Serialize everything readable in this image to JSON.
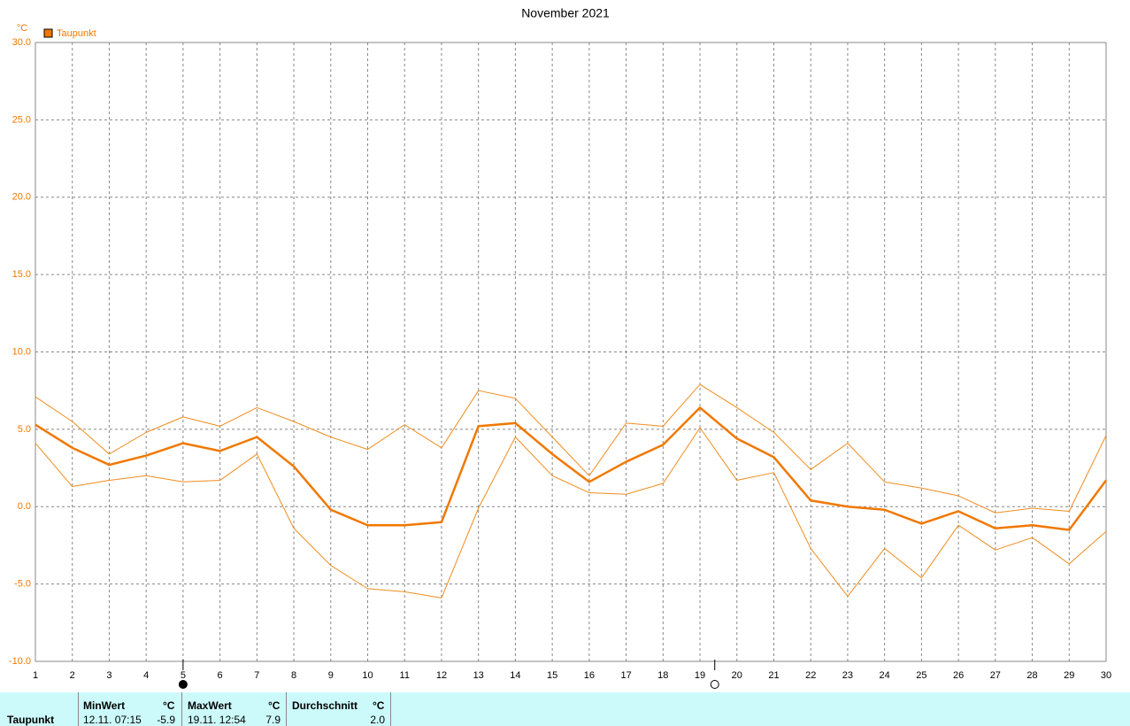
{
  "chart_data": {
    "type": "line",
    "title": "November 2021",
    "y_unit": "°C",
    "legend": "top-left",
    "x": [
      1,
      2,
      3,
      4,
      5,
      6,
      7,
      8,
      9,
      10,
      11,
      12,
      13,
      14,
      15,
      16,
      17,
      18,
      19,
      20,
      21,
      22,
      23,
      24,
      25,
      26,
      27,
      28,
      29,
      30
    ],
    "xlim": [
      1,
      30
    ],
    "xticks": [
      1,
      2,
      3,
      4,
      5,
      6,
      7,
      8,
      9,
      10,
      11,
      12,
      13,
      14,
      15,
      16,
      17,
      18,
      19,
      20,
      21,
      22,
      23,
      24,
      25,
      26,
      27,
      28,
      29,
      30
    ],
    "ylim": [
      -10,
      30
    ],
    "yticks": [
      {
        "value": -10,
        "label": "-10.0"
      },
      {
        "value": -5,
        "label": "-5.0"
      },
      {
        "value": 0,
        "label": "0.0"
      },
      {
        "value": 5,
        "label": "5.0"
      },
      {
        "value": 10,
        "label": "10.0"
      },
      {
        "value": 15,
        "label": "15.0"
      },
      {
        "value": 20,
        "label": "20.0"
      },
      {
        "value": 25,
        "label": "25.0"
      },
      {
        "value": 30,
        "label": "30.0"
      }
    ],
    "grid": true,
    "series": [
      {
        "name": "Taupunkt",
        "color": "#f07800",
        "width": 2.5,
        "values": [
          5.3,
          3.8,
          2.7,
          3.3,
          4.1,
          3.6,
          4.5,
          2.6,
          -0.2,
          -1.2,
          -1.2,
          -1.0,
          5.2,
          5.4,
          3.4,
          1.6,
          2.9,
          4.0,
          6.4,
          4.4,
          3.2,
          0.4,
          0.0,
          -0.2,
          -1.1,
          -0.3,
          -1.4,
          -1.2,
          -1.5,
          1.7
        ]
      },
      {
        "color": "#f08c1e",
        "width": 1,
        "values": [
          7.1,
          5.5,
          3.4,
          4.8,
          5.8,
          5.2,
          6.4,
          5.5,
          4.5,
          3.7,
          5.3,
          3.8,
          7.5,
          7.0,
          4.5,
          2.0,
          5.4,
          5.2,
          7.9,
          6.4,
          4.8,
          2.4,
          4.1,
          1.6,
          1.2,
          0.7,
          -0.4,
          -0.1,
          -0.3,
          4.6
        ]
      },
      {
        "color": "#f08c1e",
        "width": 1,
        "values": [
          4.1,
          1.3,
          1.7,
          2.0,
          1.6,
          1.7,
          3.4,
          -1.4,
          -3.8,
          -5.3,
          -5.5,
          -5.9,
          -0.1,
          4.5,
          2.0,
          0.9,
          0.8,
          1.5,
          5.1,
          1.7,
          2.2,
          -2.7,
          -5.8,
          -2.7,
          -4.6,
          -1.2,
          -2.8,
          -2.0,
          -3.7,
          -1.6
        ]
      }
    ],
    "moon_markers": [
      {
        "x": 5,
        "filled": true
      },
      {
        "x": 19.4,
        "filled": false
      }
    ]
  },
  "footer": {
    "label": "Taupunkt",
    "columns": [
      {
        "header": "MinWert",
        "unit": "°C",
        "time": "12.11.  07:15",
        "value": "-5.9"
      },
      {
        "header": "MaxWert",
        "unit": "°C",
        "time": "19.11.  12:54",
        "value": "7.9"
      },
      {
        "header": "Durchschnitt",
        "unit": "°C",
        "value": "2.0"
      }
    ]
  }
}
